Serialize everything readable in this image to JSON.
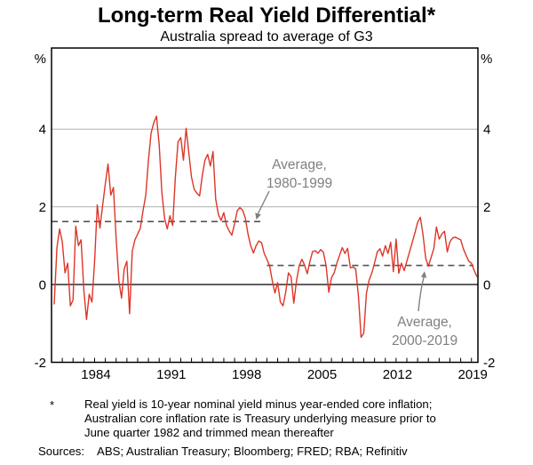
{
  "header": {
    "title": "Long-term Real Yield Differential*",
    "subtitle": "Australia spread to average of G3"
  },
  "footnote": {
    "marker": "*",
    "lines": [
      "Real yield is 10-year nominal yield minus year-ended core inflation;",
      "Australian core inflation rate is Treasury underlying measure prior to",
      "June quarter 1982 and trimmed mean thereafter"
    ],
    "sources_label": "Sources:",
    "sources": "ABS; Australian Treasury; Bloomberg; FRED; RBA; Refinitiv"
  },
  "chart_data": {
    "type": "line",
    "title": "Long-term Real Yield Differential*",
    "subtitle": "Australia spread to average of G3",
    "unit_label": "%",
    "xlim": [
      1980,
      2019.6
    ],
    "ylim": [
      -2,
      6.1
    ],
    "y_ticks": [
      -2,
      0,
      2,
      4
    ],
    "gridlines_at": [
      2,
      4
    ],
    "zero_line": true,
    "x_ticks_labeled": [
      "1984",
      "1991",
      "1998",
      "2005",
      "2012",
      "2019"
    ],
    "x_minor_tick_interval_years": 1,
    "line_color": "#de3528",
    "annotation_color": "#7f7f7f",
    "grid_color": "#b0b0b0",
    "average_lines": [
      {
        "value": 1.62,
        "from": 1980.0,
        "to": 1999.75,
        "label_line1": "Average,",
        "label_line2": "1980-1999",
        "color": "#555555"
      },
      {
        "value": 0.49,
        "from": 2000.0,
        "to": 2019.2,
        "label_line1": "Average,",
        "label_line2": "2000-2019",
        "color": "#555555"
      }
    ],
    "points": [
      [
        1980.25,
        -0.5
      ],
      [
        1980.5,
        0.95
      ],
      [
        1980.75,
        1.43
      ],
      [
        1981.0,
        1.1
      ],
      [
        1981.25,
        0.3
      ],
      [
        1981.5,
        0.55
      ],
      [
        1981.75,
        -0.55
      ],
      [
        1982.0,
        -0.4
      ],
      [
        1982.25,
        1.5
      ],
      [
        1982.5,
        1.0
      ],
      [
        1982.75,
        1.15
      ],
      [
        1983.0,
        -0.15
      ],
      [
        1983.25,
        -0.9
      ],
      [
        1983.5,
        -0.25
      ],
      [
        1983.75,
        -0.45
      ],
      [
        1984.0,
        0.6
      ],
      [
        1984.25,
        2.05
      ],
      [
        1984.5,
        1.45
      ],
      [
        1984.75,
        2.05
      ],
      [
        1985.0,
        2.6
      ],
      [
        1985.25,
        3.1
      ],
      [
        1985.5,
        2.3
      ],
      [
        1985.75,
        2.5
      ],
      [
        1986.0,
        1.2
      ],
      [
        1986.25,
        0.1
      ],
      [
        1986.5,
        -0.35
      ],
      [
        1986.75,
        0.4
      ],
      [
        1987.0,
        0.6
      ],
      [
        1987.25,
        -0.75
      ],
      [
        1987.5,
        0.86
      ],
      [
        1987.75,
        1.15
      ],
      [
        1988.0,
        1.3
      ],
      [
        1988.25,
        1.45
      ],
      [
        1988.5,
        1.9
      ],
      [
        1988.75,
        2.3
      ],
      [
        1989.0,
        3.2
      ],
      [
        1989.25,
        3.9
      ],
      [
        1989.5,
        4.17
      ],
      [
        1989.75,
        4.33
      ],
      [
        1990.0,
        3.6
      ],
      [
        1990.25,
        2.37
      ],
      [
        1990.5,
        1.7
      ],
      [
        1990.75,
        1.43
      ],
      [
        1991.0,
        1.77
      ],
      [
        1991.25,
        1.52
      ],
      [
        1991.5,
        2.76
      ],
      [
        1991.75,
        3.67
      ],
      [
        1992.0,
        3.78
      ],
      [
        1992.25,
        3.2
      ],
      [
        1992.5,
        4.02
      ],
      [
        1992.75,
        3.4
      ],
      [
        1993.0,
        2.76
      ],
      [
        1993.25,
        2.45
      ],
      [
        1993.5,
        2.35
      ],
      [
        1993.75,
        2.28
      ],
      [
        1994.0,
        2.8
      ],
      [
        1994.25,
        3.2
      ],
      [
        1994.5,
        3.35
      ],
      [
        1994.75,
        3.05
      ],
      [
        1995.0,
        3.42
      ],
      [
        1995.25,
        2.2
      ],
      [
        1995.5,
        1.8
      ],
      [
        1995.75,
        1.65
      ],
      [
        1996.0,
        1.85
      ],
      [
        1996.25,
        1.52
      ],
      [
        1996.5,
        1.38
      ],
      [
        1996.75,
        1.27
      ],
      [
        1997.0,
        1.57
      ],
      [
        1997.25,
        1.9
      ],
      [
        1997.5,
        1.98
      ],
      [
        1997.75,
        1.91
      ],
      [
        1998.0,
        1.7
      ],
      [
        1998.25,
        1.3
      ],
      [
        1998.5,
        1.0
      ],
      [
        1998.75,
        0.81
      ],
      [
        1999.0,
        1.0
      ],
      [
        1999.25,
        1.12
      ],
      [
        1999.5,
        1.08
      ],
      [
        1999.75,
        0.8
      ],
      [
        2000.0,
        0.65
      ],
      [
        2000.25,
        0.48
      ],
      [
        2000.5,
        0.1
      ],
      [
        2000.75,
        -0.22
      ],
      [
        2001.0,
        0.05
      ],
      [
        2001.25,
        -0.45
      ],
      [
        2001.5,
        -0.55
      ],
      [
        2001.75,
        -0.2
      ],
      [
        2002.0,
        0.3
      ],
      [
        2002.25,
        0.2
      ],
      [
        2002.5,
        -0.48
      ],
      [
        2002.75,
        0.1
      ],
      [
        2003.0,
        0.48
      ],
      [
        2003.25,
        0.65
      ],
      [
        2003.5,
        0.5
      ],
      [
        2003.75,
        0.28
      ],
      [
        2004.0,
        0.6
      ],
      [
        2004.25,
        0.85
      ],
      [
        2004.5,
        0.87
      ],
      [
        2004.75,
        0.8
      ],
      [
        2005.0,
        0.9
      ],
      [
        2005.25,
        0.83
      ],
      [
        2005.5,
        0.48
      ],
      [
        2005.75,
        -0.2
      ],
      [
        2006.0,
        0.18
      ],
      [
        2006.25,
        0.3
      ],
      [
        2006.5,
        0.55
      ],
      [
        2006.75,
        0.75
      ],
      [
        2007.0,
        0.95
      ],
      [
        2007.25,
        0.8
      ],
      [
        2007.5,
        0.93
      ],
      [
        2007.75,
        0.43
      ],
      [
        2008.0,
        0.45
      ],
      [
        2008.25,
        0.4
      ],
      [
        2008.5,
        -0.3
      ],
      [
        2008.75,
        -1.36
      ],
      [
        2009.0,
        -1.25
      ],
      [
        2009.25,
        -0.22
      ],
      [
        2009.5,
        0.12
      ],
      [
        2009.75,
        0.3
      ],
      [
        2010.0,
        0.55
      ],
      [
        2010.25,
        0.84
      ],
      [
        2010.5,
        0.92
      ],
      [
        2010.75,
        0.73
      ],
      [
        2011.0,
        1.0
      ],
      [
        2011.25,
        0.8
      ],
      [
        2011.5,
        1.09
      ],
      [
        2011.75,
        0.33
      ],
      [
        2012.0,
        1.17
      ],
      [
        2012.25,
        0.29
      ],
      [
        2012.5,
        0.55
      ],
      [
        2012.75,
        0.36
      ],
      [
        2013.0,
        0.6
      ],
      [
        2013.25,
        0.84
      ],
      [
        2013.5,
        1.09
      ],
      [
        2013.75,
        1.33
      ],
      [
        2014.0,
        1.6
      ],
      [
        2014.25,
        1.73
      ],
      [
        2014.5,
        1.28
      ],
      [
        2014.75,
        0.68
      ],
      [
        2015.0,
        0.47
      ],
      [
        2015.25,
        0.7
      ],
      [
        2015.5,
        0.92
      ],
      [
        2015.75,
        1.48
      ],
      [
        2016.0,
        1.17
      ],
      [
        2016.25,
        1.3
      ],
      [
        2016.5,
        1.37
      ],
      [
        2016.75,
        0.84
      ],
      [
        2017.0,
        1.1
      ],
      [
        2017.25,
        1.2
      ],
      [
        2017.5,
        1.22
      ],
      [
        2017.75,
        1.18
      ],
      [
        2018.0,
        1.15
      ],
      [
        2018.25,
        0.92
      ],
      [
        2018.5,
        0.75
      ],
      [
        2018.75,
        0.6
      ],
      [
        2019.0,
        0.55
      ],
      [
        2019.25,
        0.36
      ],
      [
        2019.5,
        0.21
      ]
    ]
  }
}
